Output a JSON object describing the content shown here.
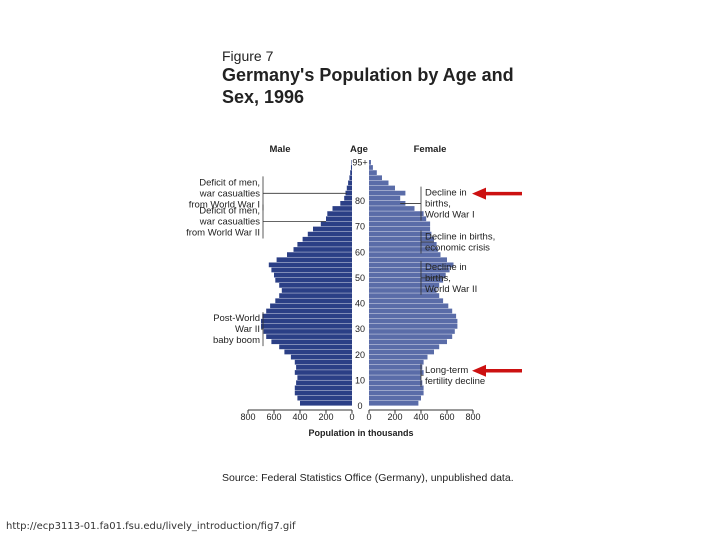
{
  "figure_label": "Figure 7",
  "source_note": "Source: Federal Statistics Office (Germany), unpublished data.",
  "footer_url": "http://ecp3113-01.fa01.fsu.edu/lively_introduction/fig7.gif",
  "colors": {
    "male": "#2b3f86",
    "female": "#5a6ca8",
    "arrow": "#cc1111",
    "line": "#333333"
  },
  "chart_data": {
    "type": "bar",
    "orientation": "horizontal",
    "title": "Germany's Population by Age and Sex, 1996",
    "xlabel": "Population in thousands",
    "ylabel": "Age",
    "male_label": "Male",
    "female_label": "Female",
    "xlim": [
      0,
      800
    ],
    "age_range": [
      0,
      95
    ],
    "age_ticks": [
      "0",
      "10",
      "20",
      "30",
      "40",
      "50",
      "60",
      "70",
      "80",
      "95+"
    ],
    "x_ticks_male": [
      "800",
      "600",
      "400",
      "200",
      "0"
    ],
    "x_ticks_female": [
      "0",
      "200",
      "400",
      "600",
      "800"
    ],
    "ages": [
      0,
      2,
      4,
      6,
      8,
      10,
      12,
      14,
      16,
      18,
      20,
      22,
      24,
      26,
      28,
      30,
      32,
      34,
      36,
      38,
      40,
      42,
      44,
      46,
      48,
      50,
      52,
      54,
      56,
      58,
      60,
      62,
      64,
      66,
      68,
      70,
      72,
      74,
      76,
      78,
      80,
      82,
      84,
      86,
      88,
      90,
      92,
      94
    ],
    "series": [
      {
        "name": "Male",
        "values": [
          400,
          420,
          440,
          440,
          430,
          420,
          440,
          430,
          440,
          470,
          520,
          560,
          620,
          660,
          680,
          700,
          700,
          690,
          660,
          630,
          590,
          560,
          540,
          560,
          590,
          600,
          620,
          640,
          580,
          500,
          450,
          420,
          380,
          340,
          300,
          240,
          200,
          190,
          150,
          90,
          60,
          50,
          40,
          30,
          20,
          14,
          8,
          4
        ]
      },
      {
        "name": "Female",
        "values": [
          380,
          400,
          420,
          420,
          410,
          400,
          420,
          410,
          420,
          450,
          500,
          540,
          600,
          640,
          660,
          680,
          680,
          670,
          640,
          610,
          570,
          540,
          520,
          540,
          570,
          590,
          620,
          650,
          600,
          550,
          530,
          520,
          500,
          480,
          470,
          470,
          440,
          420,
          350,
          280,
          240,
          280,
          200,
          150,
          100,
          60,
          30,
          15
        ]
      }
    ],
    "annotations": {
      "male": [
        {
          "age": 83,
          "lines": [
            "Deficit of men,",
            "war casualties",
            "from World War I"
          ]
        },
        {
          "age": 72,
          "lines": [
            "Deficit of men,",
            "war casualties",
            "from World War II"
          ]
        },
        {
          "age": 30,
          "lines": [
            "Post-World",
            "War II",
            "baby boom"
          ]
        }
      ],
      "female": [
        {
          "age": 79,
          "lines": [
            "Decline in",
            "births,",
            "World War I"
          ],
          "arrow": true
        },
        {
          "age": 64,
          "lines": [
            "Decline in births,",
            "economic crisis"
          ]
        },
        {
          "age": 50,
          "lines": [
            "Decline in",
            "births,",
            "World War II"
          ]
        },
        {
          "age": 12,
          "lines": [
            "Long-term",
            "fertility decline"
          ],
          "arrow": true
        }
      ]
    }
  }
}
